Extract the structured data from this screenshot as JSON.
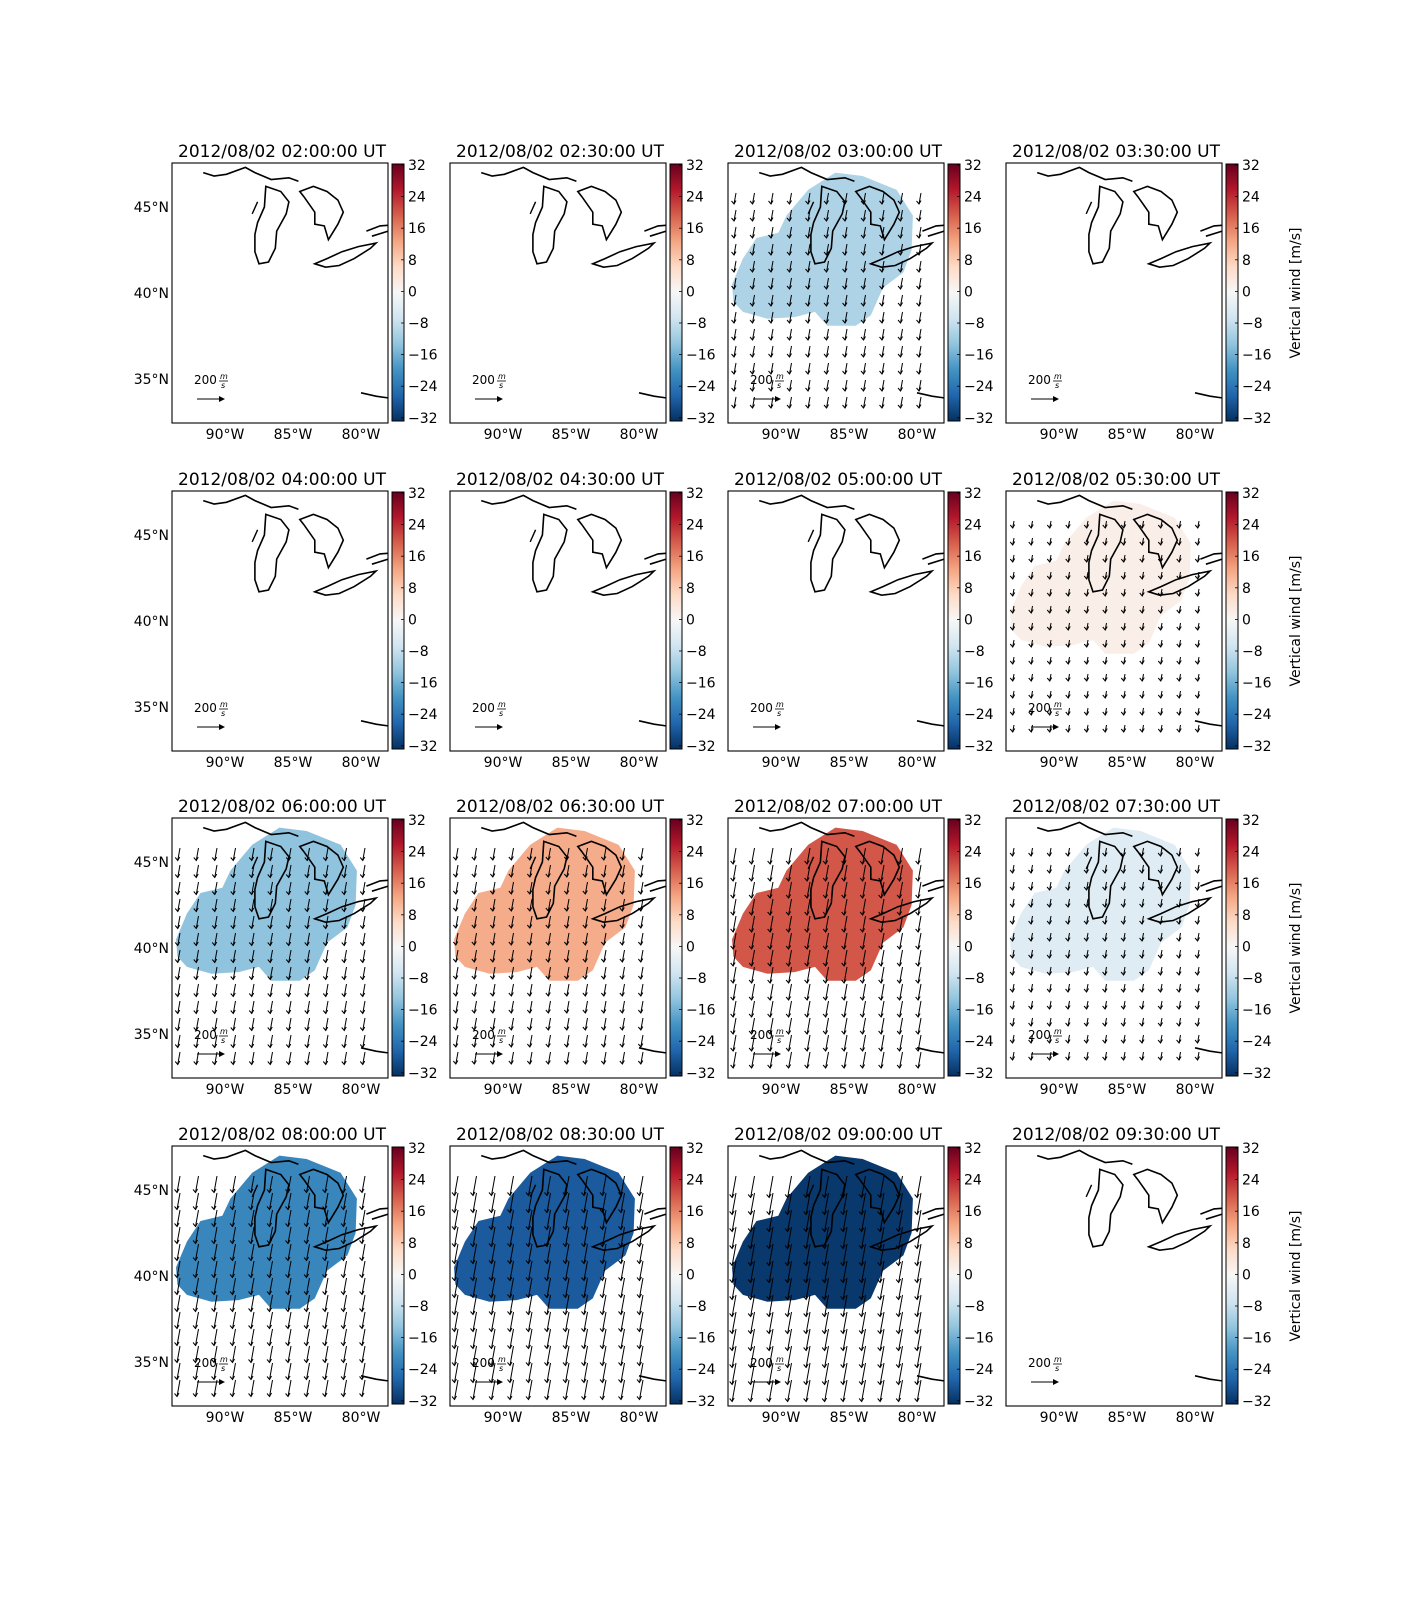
{
  "figure": {
    "colorbar": {
      "label": "Vertical wind [m/s]",
      "ticks": [
        "32",
        "24",
        "16",
        "8",
        "0",
        "−8",
        "−16",
        "−24",
        "−32"
      ]
    },
    "lat_labels": [
      "45°N",
      "40°N",
      "35°N"
    ],
    "lon_labels": [
      "90°W",
      "85°W",
      "80°W"
    ],
    "arrow_key": {
      "value": "200",
      "unit_num": "m",
      "unit_den": "s"
    },
    "panels": [
      {
        "title": "2012/08/02 02:00:00 UT",
        "value": null
      },
      {
        "title": "2012/08/02 02:30:00 UT",
        "value": null
      },
      {
        "title": "2012/08/02 03:00:00 UT",
        "value": -10
      },
      {
        "title": "2012/08/02 03:30:00 UT",
        "value": null
      },
      {
        "title": "2012/08/02 04:00:00 UT",
        "value": null
      },
      {
        "title": "2012/08/02 04:30:00 UT",
        "value": null
      },
      {
        "title": "2012/08/02 05:00:00 UT",
        "value": null
      },
      {
        "title": "2012/08/02 05:30:00 UT",
        "value": 2
      },
      {
        "title": "2012/08/02 06:00:00 UT",
        "value": -13
      },
      {
        "title": "2012/08/02 06:30:00 UT",
        "value": 12
      },
      {
        "title": "2012/08/02 07:00:00 UT",
        "value": 20
      },
      {
        "title": "2012/08/02 07:30:00 UT",
        "value": -4
      },
      {
        "title": "2012/08/02 08:00:00 UT",
        "value": -21
      },
      {
        "title": "2012/08/02 08:30:00 UT",
        "value": -27
      },
      {
        "title": "2012/08/02 09:00:00 UT",
        "value": -31
      },
      {
        "title": "2012/08/02 09:30:00 UT",
        "value": null
      }
    ]
  }
}
